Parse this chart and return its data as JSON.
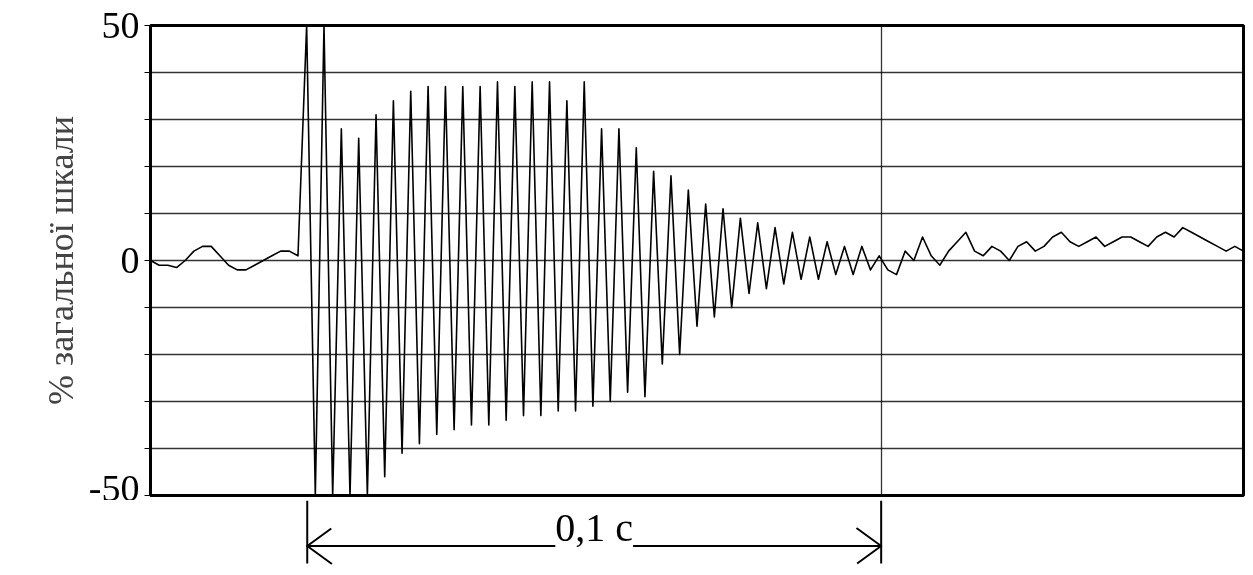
{
  "chart_data": {
    "type": "line",
    "ylabel": "% загальної шкали",
    "tick_labels": "y",
    "grid": true,
    "marker": "none",
    "line_style": "solid",
    "categories": [
      null,
      null,
      null,
      null,
      null,
      null,
      null,
      null,
      null,
      null,
      null,
      null,
      null,
      null,
      null,
      null,
      null,
      null,
      null,
      null,
      null,
      null,
      null,
      null,
      null,
      null,
      null,
      null,
      null,
      null,
      null,
      null,
      null,
      null,
      null,
      null,
      null,
      null,
      null,
      null,
      null,
      null,
      null,
      null,
      null,
      null,
      null,
      null,
      null,
      null,
      null,
      null,
      null,
      null,
      null,
      null,
      null,
      null,
      null,
      null,
      null,
      null,
      null,
      null,
      null,
      null,
      null,
      null,
      null,
      null,
      null,
      null,
      null,
      null,
      null,
      null,
      null,
      null,
      null,
      null,
      null,
      null,
      null,
      null,
      null,
      null,
      null,
      null,
      null,
      null,
      null,
      null,
      null,
      null,
      null,
      null,
      null,
      null,
      null,
      null,
      null,
      null,
      null,
      null,
      null,
      null,
      null,
      null,
      null,
      null,
      null,
      null,
      null,
      null,
      null,
      null,
      null,
      null,
      null,
      null,
      null,
      null,
      null,
      null,
      null,
      null,
      null
    ],
    "ylim": [
      -50,
      50
    ],
    "yticks": [
      -50,
      {
        "value": -40,
        "label": null
      },
      {
        "value": -30,
        "label": null
      },
      {
        "value": -20,
        "label": null
      },
      {
        "value": -10,
        "label": null
      },
      0,
      {
        "value": 10,
        "label": null
      },
      {
        "value": 20,
        "label": null
      },
      {
        "value": 30,
        "label": null
      },
      {
        "value": 40,
        "label": null
      },
      50
    ],
    "annotations": [
      "0,1 c"
    ],
    "series": [
      {
        "color": "#000000",
        "values": [
          0,
          -1,
          -1,
          -1.5,
          0,
          2,
          3,
          3,
          1,
          -1,
          -2,
          -2,
          -1,
          0,
          1,
          2,
          2,
          1,
          50,
          -50,
          50,
          -50,
          28,
          -50,
          26,
          -50,
          31,
          -46,
          34,
          -41,
          36,
          -39,
          37,
          -37,
          37,
          -36,
          37,
          -35,
          37,
          -35,
          38,
          -34,
          37,
          -33,
          38,
          -33,
          38,
          -32,
          34,
          -32,
          38,
          -31,
          28,
          -30,
          28,
          -28,
          24,
          -29,
          19,
          -22,
          18,
          -20,
          15,
          -14,
          12,
          -12,
          11,
          -10,
          9,
          -7,
          8,
          -6,
          7,
          -5,
          6,
          -4,
          5,
          -4,
          4,
          -3,
          3,
          -3,
          3,
          -2,
          1,
          -2,
          -3,
          2,
          0,
          5,
          1,
          -1,
          2,
          4,
          6,
          2,
          1,
          3,
          2,
          0,
          3,
          4,
          2,
          3,
          5,
          6,
          4,
          3,
          4,
          5,
          3,
          4,
          5,
          5,
          4,
          3,
          5,
          6,
          5,
          7,
          6,
          5,
          4,
          3,
          2,
          3,
          2
        ]
      }
    ]
  }
}
